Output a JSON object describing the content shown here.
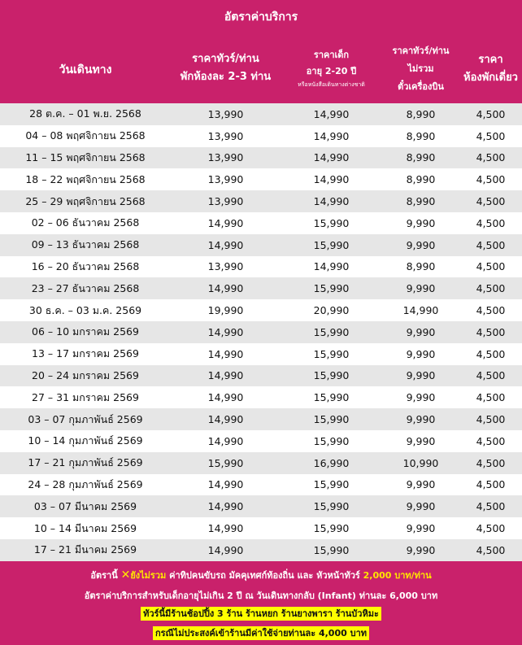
{
  "title": "อัตราค่าบริการ",
  "headers": {
    "date": "วันเดินทาง",
    "adult_1": "ราคาทัวร์/ท่าน",
    "adult_2": "พักห้องละ 2-3 ท่าน",
    "child_1": "ราคาเด็ก",
    "child_2": "อายุ 2-20 ปี",
    "child_3": "หรือหนังสือเดินทางต่างชาติ",
    "noticket_1": "ราคาทัวร์/ท่าน",
    "noticket_2": "ไม่รวม",
    "noticket_3": "ตั๋วเครื่องบิน",
    "single_1": "ราคา",
    "single_2": "ห้องพักเดี่ยว"
  },
  "rows": [
    {
      "date": "28 ต.ค. – 01 พ.ย. 2568",
      "adult": "13,990",
      "child": "14,990",
      "noticket": "8,990",
      "single": "4,500"
    },
    {
      "date": "04 – 08 พฤศจิกายน 2568",
      "adult": "13,990",
      "child": "14,990",
      "noticket": "8,990",
      "single": "4,500"
    },
    {
      "date": "11 – 15 พฤศจิกายน 2568",
      "adult": "13,990",
      "child": "14,990",
      "noticket": "8,990",
      "single": "4,500"
    },
    {
      "date": "18 – 22 พฤศจิกายน 2568",
      "adult": "13,990",
      "child": "14,990",
      "noticket": "8,990",
      "single": "4,500"
    },
    {
      "date": "25 – 29 พฤศจิกายน 2568",
      "adult": "13,990",
      "child": "14,990",
      "noticket": "8,990",
      "single": "4,500"
    },
    {
      "date": "02 – 06 ธันวาคม 2568",
      "adult": "14,990",
      "child": "15,990",
      "noticket": "9,990",
      "single": "4,500"
    },
    {
      "date": "09 – 13 ธันวาคม 2568",
      "adult": "14,990",
      "child": "15,990",
      "noticket": "9,990",
      "single": "4,500"
    },
    {
      "date": "16 – 20 ธันวาคม 2568",
      "adult": "13,990",
      "child": "14,990",
      "noticket": "8,990",
      "single": "4,500"
    },
    {
      "date": "23 – 27 ธันวาคม 2568",
      "adult": "14,990",
      "child": "15,990",
      "noticket": "9,990",
      "single": "4,500"
    },
    {
      "date": "30 ธ.ค. – 03 ม.ค. 2569",
      "adult": "19,990",
      "child": "20,990",
      "noticket": "14,990",
      "single": "4,500"
    },
    {
      "date": "06 – 10 มกราคม 2569",
      "adult": "14,990",
      "child": "15,990",
      "noticket": "9,990",
      "single": "4,500"
    },
    {
      "date": "13 – 17 มกราคม 2569",
      "adult": "14,990",
      "child": "15,990",
      "noticket": "9,990",
      "single": "4,500"
    },
    {
      "date": "20 – 24 มกราคม 2569",
      "adult": "14,990",
      "child": "15,990",
      "noticket": "9,990",
      "single": "4,500"
    },
    {
      "date": "27 – 31 มกราคม 2569",
      "adult": "14,990",
      "child": "15,990",
      "noticket": "9,990",
      "single": "4,500"
    },
    {
      "date": "03 – 07 กุมภาพันธ์ 2569",
      "adult": "14,990",
      "child": "15,990",
      "noticket": "9,990",
      "single": "4,500"
    },
    {
      "date": "10 – 14 กุมภาพันธ์ 2569",
      "adult": "14,990",
      "child": "15,990",
      "noticket": "9,990",
      "single": "4,500"
    },
    {
      "date": "17 – 21 กุมภาพันธ์ 2569",
      "adult": "15,990",
      "child": "16,990",
      "noticket": "10,990",
      "single": "4,500"
    },
    {
      "date": "24 – 28 กุมภาพันธ์ 2569",
      "adult": "14,990",
      "child": "15,990",
      "noticket": "9,990",
      "single": "4,500"
    },
    {
      "date": "03 – 07 มีนาคม 2569",
      "adult": "14,990",
      "child": "15,990",
      "noticket": "9,990",
      "single": "4,500"
    },
    {
      "date": "10 – 14 มีนาคม 2569",
      "adult": "14,990",
      "child": "15,990",
      "noticket": "9,990",
      "single": "4,500"
    },
    {
      "date": "17 – 21 มีนาคม 2569",
      "adult": "14,990",
      "child": "15,990",
      "noticket": "9,990",
      "single": "4,500"
    }
  ],
  "footer": {
    "line1_a": "อัตรานี้",
    "line1_x": "✕",
    "line1_b": "ยังไม่รวม",
    "line1_c": "ค่าทิปคนขับรถ มัคคุเทศก์ท้องถิ่น และ หัวหน้าทัวร์",
    "line1_d": "2,000 บาท/ท่าน",
    "line2": "อัตราค่าบริการสำหรับเด็กอายุไม่เกิน 2 ปี ณ วันเดินทางกลับ (Infant) ท่านละ 6,000 บาท",
    "line3": "ทัวร์นี้มีร้านช้อปปิ้ง 3 ร้าน ร้านหยก ร้านยางพารา ร้านบัวหิมะ",
    "line4": "กรณีไม่ประสงค์เข้าร้านมีค่าใช้จ่ายท่านละ 4,000 บาท"
  },
  "colors": {
    "brand": "#c9216b",
    "row_alt": "#e6e6e6",
    "highlight": "#ffff00",
    "accent": "#ffe600"
  }
}
